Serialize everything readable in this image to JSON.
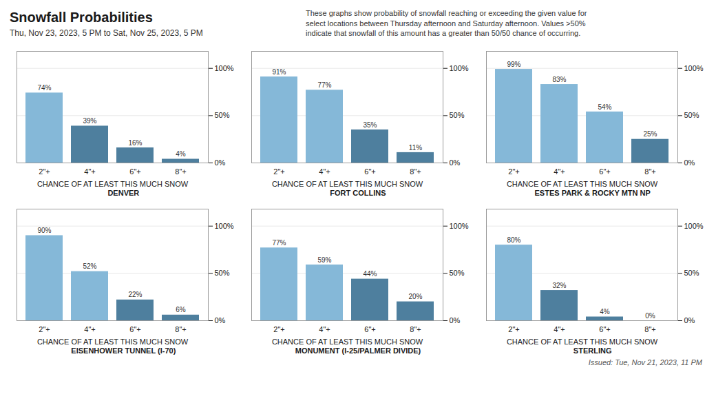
{
  "title": "Snowfall Probabilities",
  "subtitle": "Thu, Nov 23, 2023, 5 PM to Sat, Nov 25, 2023, 5 PM",
  "annotations": [
    "These graphs show probability of snowfall reaching or exceeding the given value for\nselect locations between Thursday afternoon and Saturday afternoon. Values >50%\nindicate that snowfall of this amount has a greater than 50/50 chance of occurring.",
    "Issued: Tue, Nov 21, 2023, 11 PM"
  ],
  "chart_data": [
    {
      "type": "bar",
      "title": "DENVER",
      "xlabel": "CHANCE OF AT LEAST THIS MUCH SNOW",
      "categories": [
        "2\"+",
        "4\"+",
        "6\"+",
        "8\"+"
      ],
      "values": [
        74,
        39,
        16,
        4
      ],
      "value_labels": [
        "74%",
        "39%",
        "16%",
        "4%"
      ],
      "data_labels": true,
      "colors": [
        "#85b8d8",
        "#4e7f9e",
        "#4e7f9e",
        "#4e7f9e"
      ],
      "ylim": [
        0,
        118
      ],
      "yticks": [
        {
          "value": 0,
          "label": "0%"
        },
        {
          "value": 50,
          "label": "50%"
        },
        {
          "value": 100,
          "label": "100%"
        }
      ],
      "grid": true
    },
    {
      "type": "bar",
      "title": "FORT COLLINS",
      "xlabel": "CHANCE OF AT LEAST THIS MUCH SNOW",
      "categories": [
        "2\"+",
        "4\"+",
        "6\"+",
        "8\"+"
      ],
      "values": [
        91,
        77,
        35,
        11
      ],
      "value_labels": [
        "91%",
        "77%",
        "35%",
        "11%"
      ],
      "data_labels": true,
      "colors": [
        "#85b8d8",
        "#85b8d8",
        "#4e7f9e",
        "#4e7f9e"
      ],
      "ylim": [
        0,
        118
      ],
      "yticks": [
        {
          "value": 0,
          "label": "0%"
        },
        {
          "value": 50,
          "label": "50%"
        },
        {
          "value": 100,
          "label": "100%"
        }
      ],
      "grid": true
    },
    {
      "type": "bar",
      "title": "ESTES PARK & ROCKY MTN NP",
      "xlabel": "CHANCE OF AT LEAST THIS MUCH SNOW",
      "categories": [
        "2\"+",
        "4\"+",
        "6\"+",
        "8\"+"
      ],
      "values": [
        99,
        83,
        54,
        25
      ],
      "value_labels": [
        "99%",
        "83%",
        "54%",
        "25%"
      ],
      "data_labels": true,
      "colors": [
        "#85b8d8",
        "#85b8d8",
        "#85b8d8",
        "#4e7f9e"
      ],
      "ylim": [
        0,
        118
      ],
      "yticks": [
        {
          "value": 0,
          "label": "0%"
        },
        {
          "value": 50,
          "label": "50%"
        },
        {
          "value": 100,
          "label": "100%"
        }
      ],
      "grid": true
    },
    {
      "type": "bar",
      "title": "EISENHOWER TUNNEL (I-70)",
      "xlabel": "CHANCE OF AT LEAST THIS MUCH SNOW",
      "categories": [
        "2\"+",
        "4\"+",
        "6\"+",
        "8\"+"
      ],
      "values": [
        90,
        52,
        22,
        6
      ],
      "value_labels": [
        "90%",
        "52%",
        "22%",
        "6%"
      ],
      "data_labels": true,
      "colors": [
        "#85b8d8",
        "#85b8d8",
        "#4e7f9e",
        "#4e7f9e"
      ],
      "ylim": [
        0,
        118
      ],
      "yticks": [
        {
          "value": 0,
          "label": "0%"
        },
        {
          "value": 50,
          "label": "50%"
        },
        {
          "value": 100,
          "label": "100%"
        }
      ],
      "grid": true
    },
    {
      "type": "bar",
      "title": "MONUMENT (I-25/PALMER DIVIDE)",
      "xlabel": "CHANCE OF AT LEAST THIS MUCH SNOW",
      "categories": [
        "2\"+",
        "4\"+",
        "6\"+",
        "8\"+"
      ],
      "values": [
        77,
        59,
        44,
        20
      ],
      "value_labels": [
        "77%",
        "59%",
        "44%",
        "20%"
      ],
      "data_labels": true,
      "colors": [
        "#85b8d8",
        "#85b8d8",
        "#4e7f9e",
        "#4e7f9e"
      ],
      "ylim": [
        0,
        118
      ],
      "yticks": [
        {
          "value": 0,
          "label": "0%"
        },
        {
          "value": 50,
          "label": "50%"
        },
        {
          "value": 100,
          "label": "100%"
        }
      ],
      "grid": true
    },
    {
      "type": "bar",
      "title": "STERLING",
      "xlabel": "CHANCE OF AT LEAST THIS MUCH SNOW",
      "categories": [
        "2\"+",
        "4\"+",
        "6\"+",
        "8\"+"
      ],
      "values": [
        80,
        32,
        4,
        0
      ],
      "value_labels": [
        "80%",
        "32%",
        "4%",
        "0%"
      ],
      "data_labels": true,
      "colors": [
        "#85b8d8",
        "#4e7f9e",
        "#4e7f9e",
        "#4e7f9e"
      ],
      "ylim": [
        0,
        118
      ],
      "yticks": [
        {
          "value": 0,
          "label": "0%"
        },
        {
          "value": 50,
          "label": "50%"
        },
        {
          "value": 100,
          "label": "100%"
        }
      ],
      "grid": true
    }
  ]
}
